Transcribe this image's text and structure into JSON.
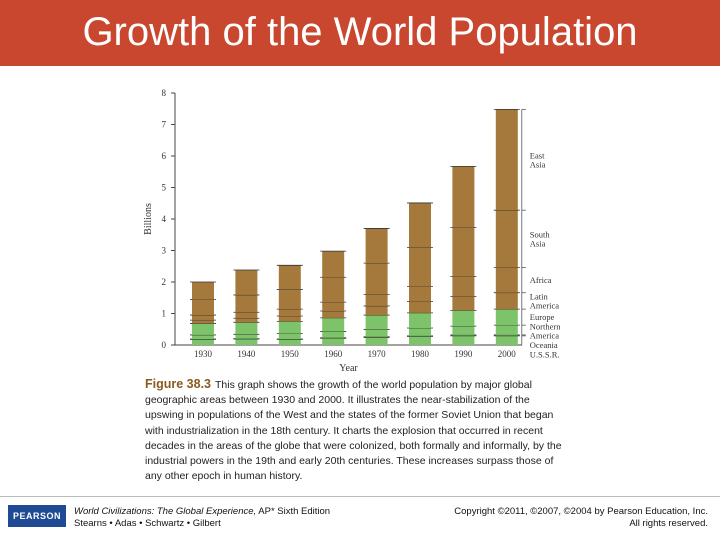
{
  "title": "Growth of the World Population",
  "chart_data": {
    "type": "bar",
    "stacked": true,
    "title": "",
    "xlabel": "Year",
    "ylabel": "Billions",
    "ylim": [
      0,
      8
    ],
    "yticks": [
      "0",
      "1",
      "2",
      "3",
      "4",
      "5",
      "6",
      "7",
      "8"
    ],
    "categories": [
      "1930",
      "1940",
      "1950",
      "1960",
      "1970",
      "1980",
      "1990",
      "2000"
    ],
    "series": [
      {
        "name": "U.S.S.R.",
        "color": "#7dc36a",
        "values": [
          0.18,
          0.19,
          0.18,
          0.21,
          0.24,
          0.27,
          0.29,
          0.29
        ]
      },
      {
        "name": "Oceania",
        "color": "#7dc36a",
        "values": [
          0.01,
          0.01,
          0.01,
          0.02,
          0.02,
          0.02,
          0.03,
          0.03
        ]
      },
      {
        "name": "Northern America",
        "color": "#7dc36a",
        "values": [
          0.13,
          0.14,
          0.17,
          0.2,
          0.23,
          0.25,
          0.28,
          0.31
        ]
      },
      {
        "name": "Europe",
        "color": "#7dc36a",
        "values": [
          0.36,
          0.38,
          0.39,
          0.43,
          0.46,
          0.48,
          0.5,
          0.51
        ]
      },
      {
        "name": "Latin America",
        "color": "#a5793b",
        "values": [
          0.11,
          0.13,
          0.17,
          0.22,
          0.29,
          0.36,
          0.44,
          0.52
        ]
      },
      {
        "name": "Africa",
        "color": "#a5793b",
        "values": [
          0.16,
          0.19,
          0.22,
          0.28,
          0.36,
          0.48,
          0.63,
          0.8
        ]
      },
      {
        "name": "South Asia",
        "color": "#a5793b",
        "values": [
          0.49,
          0.55,
          0.62,
          0.79,
          1.0,
          1.24,
          1.56,
          1.82
        ]
      },
      {
        "name": "East Asia",
        "color": "#a5793b",
        "values": [
          0.56,
          0.79,
          0.77,
          0.83,
          1.1,
          1.41,
          1.94,
          3.2
        ]
      }
    ],
    "legend": [
      {
        "label": "East Asia",
        "lines": [
          "East",
          "Asia"
        ]
      },
      {
        "label": "South Asia",
        "lines": [
          "South",
          "Asia"
        ]
      },
      {
        "label": "Africa",
        "lines": [
          "Africa"
        ]
      },
      {
        "label": "Latin America",
        "lines": [
          "Latin",
          "America"
        ]
      },
      {
        "label": "Europe",
        "lines": [
          "Europe"
        ]
      },
      {
        "label": "Northern America",
        "lines": [
          "Northern",
          "America"
        ]
      },
      {
        "label": "Oceania",
        "lines": [
          "Oceania"
        ]
      },
      {
        "label": "U.S.S.R.",
        "lines": [
          "U.S.S.R."
        ]
      }
    ],
    "legend_placement": "right",
    "grid": false
  },
  "caption": {
    "label": "Figure 38.3",
    "text": "This graph shows the growth of the world population by major global geographic areas between 1930 and 2000. It illustrates the near-stabilization of the upswing in populations of the West and the states of the former Soviet Union that began with industrialization in the 18th century. It charts the explosion that occurred in recent decades in the areas of the globe that were colonized, both formally and informally, by the industrial powers in the 19th and early 20th centuries. These increases surpass those of any other epoch in human history."
  },
  "footer": {
    "logo": "PEARSON",
    "book_title": "World Civilizations: The Global Experience,",
    "edition": " AP* Sixth Edition",
    "authors": "Stearns • Adas • Schwartz • Gilbert",
    "copyright": "Copyright ©2011, ©2007, ©2004 by Pearson Education, Inc.",
    "rights": "All rights reserved."
  },
  "colors": {
    "title_bar": "#c8472e",
    "bar_top": "#a5793b",
    "bar_bottom": "#7dc36a"
  }
}
